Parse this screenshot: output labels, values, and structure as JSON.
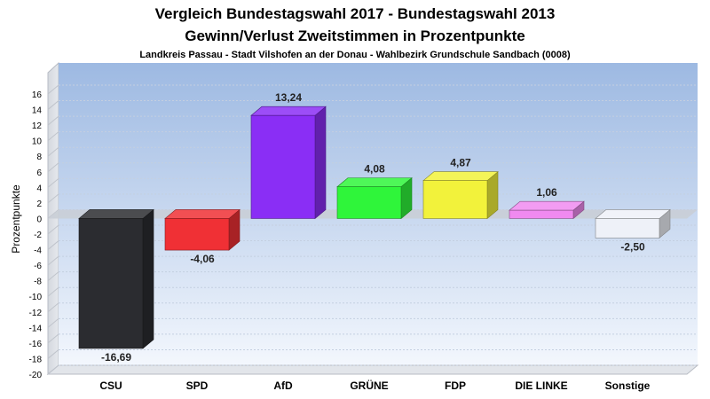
{
  "chart_data": {
    "type": "bar",
    "title": "Vergleich Bundestagswahl 2017 - Bundestagswahl 2013",
    "subtitle": "Gewinn/Verlust Zweitstimmen in Prozentpunkte",
    "subsubtitle": "Landkreis Passau - Stadt Vilshofen an der Donau - Wahlbezirk  Grundschule Sandbach (0008)",
    "ylabel": "Prozentpunkte",
    "ylim": [
      -20,
      16
    ],
    "yticks": [
      16,
      14,
      12,
      10,
      8,
      6,
      4,
      2,
      0,
      -2,
      -4,
      -6,
      -8,
      -10,
      -12,
      -14,
      -16,
      -18,
      -20
    ],
    "grid": true,
    "categories": [
      "CSU",
      "SPD",
      "AfD",
      "GRÜNE",
      "FDP",
      "DIE LINKE",
      "Sonstige"
    ],
    "values": [
      -16.69,
      -4.06,
      13.24,
      4.08,
      4.87,
      1.06,
      -2.5
    ],
    "value_labels": [
      "-16,69",
      "-4,06",
      "13,24",
      "4,08",
      "4,87",
      "1,06",
      "-2,50"
    ],
    "colors": [
      "#2b2c30",
      "#f03035",
      "#8a2ef5",
      "#2ff53a",
      "#f2f23b",
      "#f08af0",
      "#eef1f8"
    ]
  }
}
